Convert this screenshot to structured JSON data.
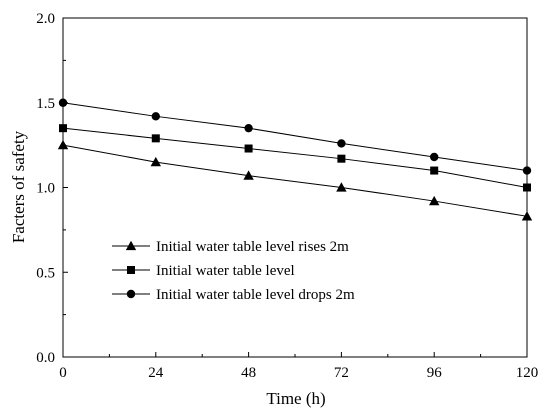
{
  "chart_data": {
    "type": "line",
    "title": "",
    "xlabel": "Time (h)",
    "ylabel": "Facters of safety",
    "xlim": [
      0,
      120
    ],
    "ylim": [
      0.0,
      2.0
    ],
    "xticks": [
      0,
      24,
      48,
      72,
      96,
      120
    ],
    "yticks": [
      0.0,
      0.5,
      1.0,
      1.5,
      2.0
    ],
    "xtick_labels": [
      "0",
      "24",
      "48",
      "72",
      "96",
      "120"
    ],
    "ytick_labels": [
      "0.0",
      "0.5",
      "1.0",
      "1.5",
      "2.0"
    ],
    "grid": false,
    "legend_position": "lower-left",
    "x": [
      0,
      24,
      48,
      72,
      96,
      120
    ],
    "series": [
      {
        "name": "Initial water table level rises 2m",
        "marker": "triangle",
        "values": [
          1.25,
          1.15,
          1.07,
          1.0,
          0.92,
          0.83
        ]
      },
      {
        "name": "Initial water table level",
        "marker": "square",
        "values": [
          1.35,
          1.29,
          1.23,
          1.17,
          1.1,
          1.0
        ]
      },
      {
        "name": "Initial water table level drops 2m",
        "marker": "circle",
        "values": [
          1.5,
          1.42,
          1.35,
          1.26,
          1.18,
          1.1
        ]
      }
    ]
  }
}
